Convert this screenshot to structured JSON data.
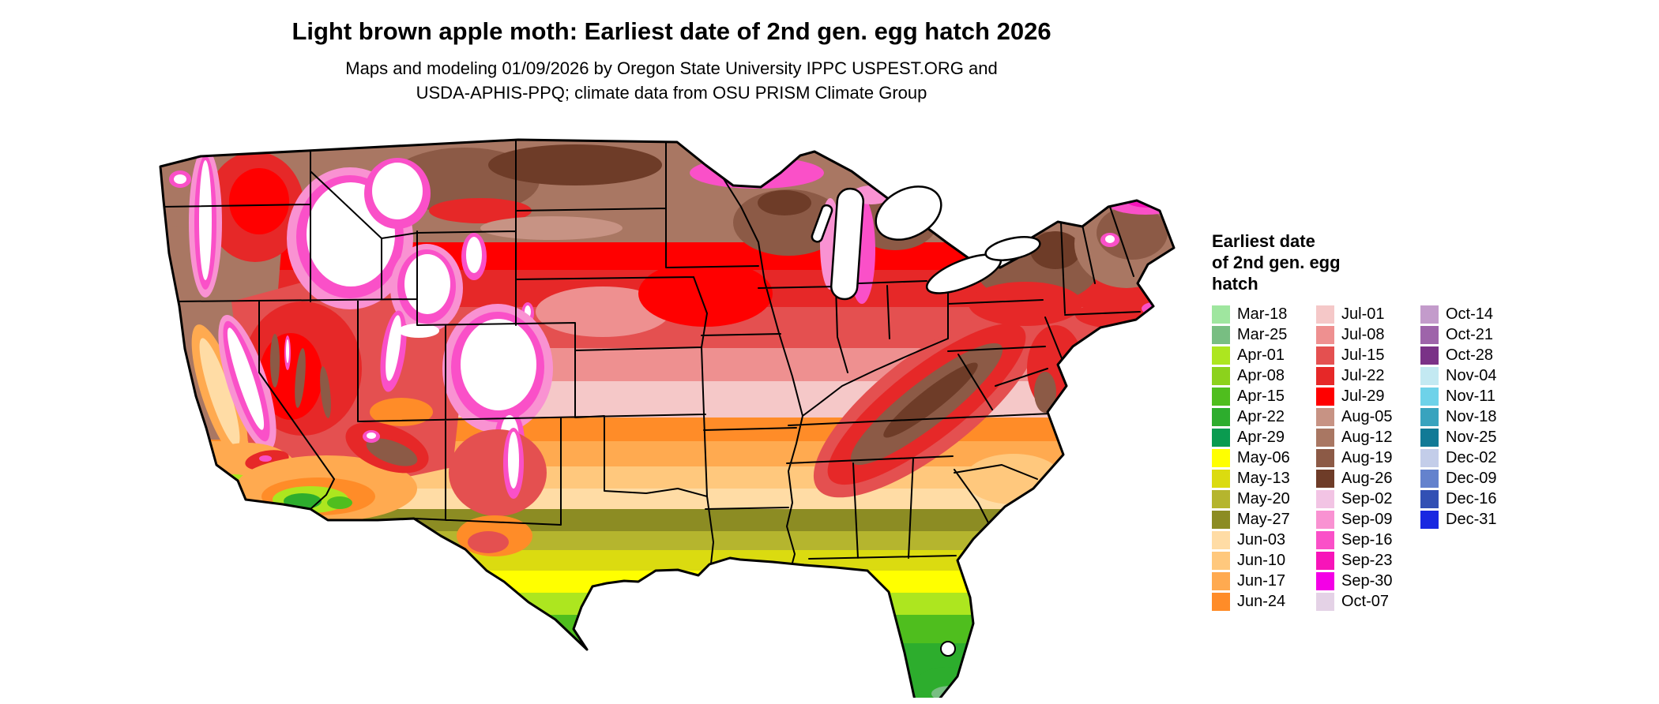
{
  "header": {
    "title": "Light brown apple moth: Earliest date of 2nd gen. egg hatch 2026",
    "subtitle_line1": "Maps and modeling 01/09/2026 by Oregon State University IPPC USPEST.ORG and",
    "subtitle_line2": "USDA-APHIS-PPQ; climate data from OSU PRISM Climate Group"
  },
  "legend": {
    "title_lines": [
      "Earliest date",
      "of 2nd gen. egg",
      "hatch"
    ],
    "columns": [
      {
        "items": [
          {
            "label": "Mar-18",
            "color": "#9FE69F"
          },
          {
            "label": "Mar-25",
            "color": "#78BE82"
          },
          {
            "label": "Apr-01",
            "color": "#ADE61F"
          },
          {
            "label": "Apr-08",
            "color": "#8CD21C"
          },
          {
            "label": "Apr-15",
            "color": "#4FBE1E"
          },
          {
            "label": "Apr-22",
            "color": "#2DAD2D"
          },
          {
            "label": "Apr-29",
            "color": "#0A9B50"
          },
          {
            "label": "May-06",
            "color": "#FFFF00"
          },
          {
            "label": "May-13",
            "color": "#DBDB10"
          },
          {
            "label": "May-20",
            "color": "#B5B52E"
          },
          {
            "label": "May-27",
            "color": "#8C8C23"
          },
          {
            "label": "Jun-03",
            "color": "#FFDCA5"
          },
          {
            "label": "Jun-10",
            "color": "#FFC87D"
          },
          {
            "label": "Jun-17",
            "color": "#FFAA50"
          },
          {
            "label": "Jun-24",
            "color": "#FF8C28"
          }
        ]
      },
      {
        "items": [
          {
            "label": "Jul-01",
            "color": "#F5C8C8"
          },
          {
            "label": "Jul-08",
            "color": "#EE9090"
          },
          {
            "label": "Jul-15",
            "color": "#E45050"
          },
          {
            "label": "Jul-22",
            "color": "#E62828"
          },
          {
            "label": "Jul-29",
            "color": "#FF0000"
          },
          {
            "label": "Aug-05",
            "color": "#C79384"
          },
          {
            "label": "Aug-12",
            "color": "#A97763"
          },
          {
            "label": "Aug-19",
            "color": "#8C5A46"
          },
          {
            "label": "Aug-26",
            "color": "#6E3C28"
          },
          {
            "label": "Sep-02",
            "color": "#F2C4E4"
          },
          {
            "label": "Sep-09",
            "color": "#F992D2"
          },
          {
            "label": "Sep-16",
            "color": "#FA50C8"
          },
          {
            "label": "Sep-23",
            "color": "#F714B9"
          },
          {
            "label": "Sep-30",
            "color": "#F400E6"
          },
          {
            "label": "Oct-07",
            "color": "#E4D2E6"
          }
        ]
      },
      {
        "items": [
          {
            "label": "Oct-14",
            "color": "#C39BCB"
          },
          {
            "label": "Oct-21",
            "color": "#9E64AA"
          },
          {
            "label": "Oct-28",
            "color": "#7A3287"
          },
          {
            "label": "Nov-04",
            "color": "#C3E9F2"
          },
          {
            "label": "Nov-11",
            "color": "#6ED2E9"
          },
          {
            "label": "Nov-18",
            "color": "#38A3BE"
          },
          {
            "label": "Nov-25",
            "color": "#117A96"
          },
          {
            "label": "Dec-02",
            "color": "#C3CDE9"
          },
          {
            "label": "Dec-09",
            "color": "#6482CD"
          },
          {
            "label": "Dec-16",
            "color": "#3250B4"
          },
          {
            "label": "Dec-31",
            "color": "#1928E1"
          }
        ]
      }
    ]
  },
  "map": {
    "description": "Continental US raster map colored by earliest date of 2nd generation egg hatch; white areas indicate no predicted hatch"
  }
}
